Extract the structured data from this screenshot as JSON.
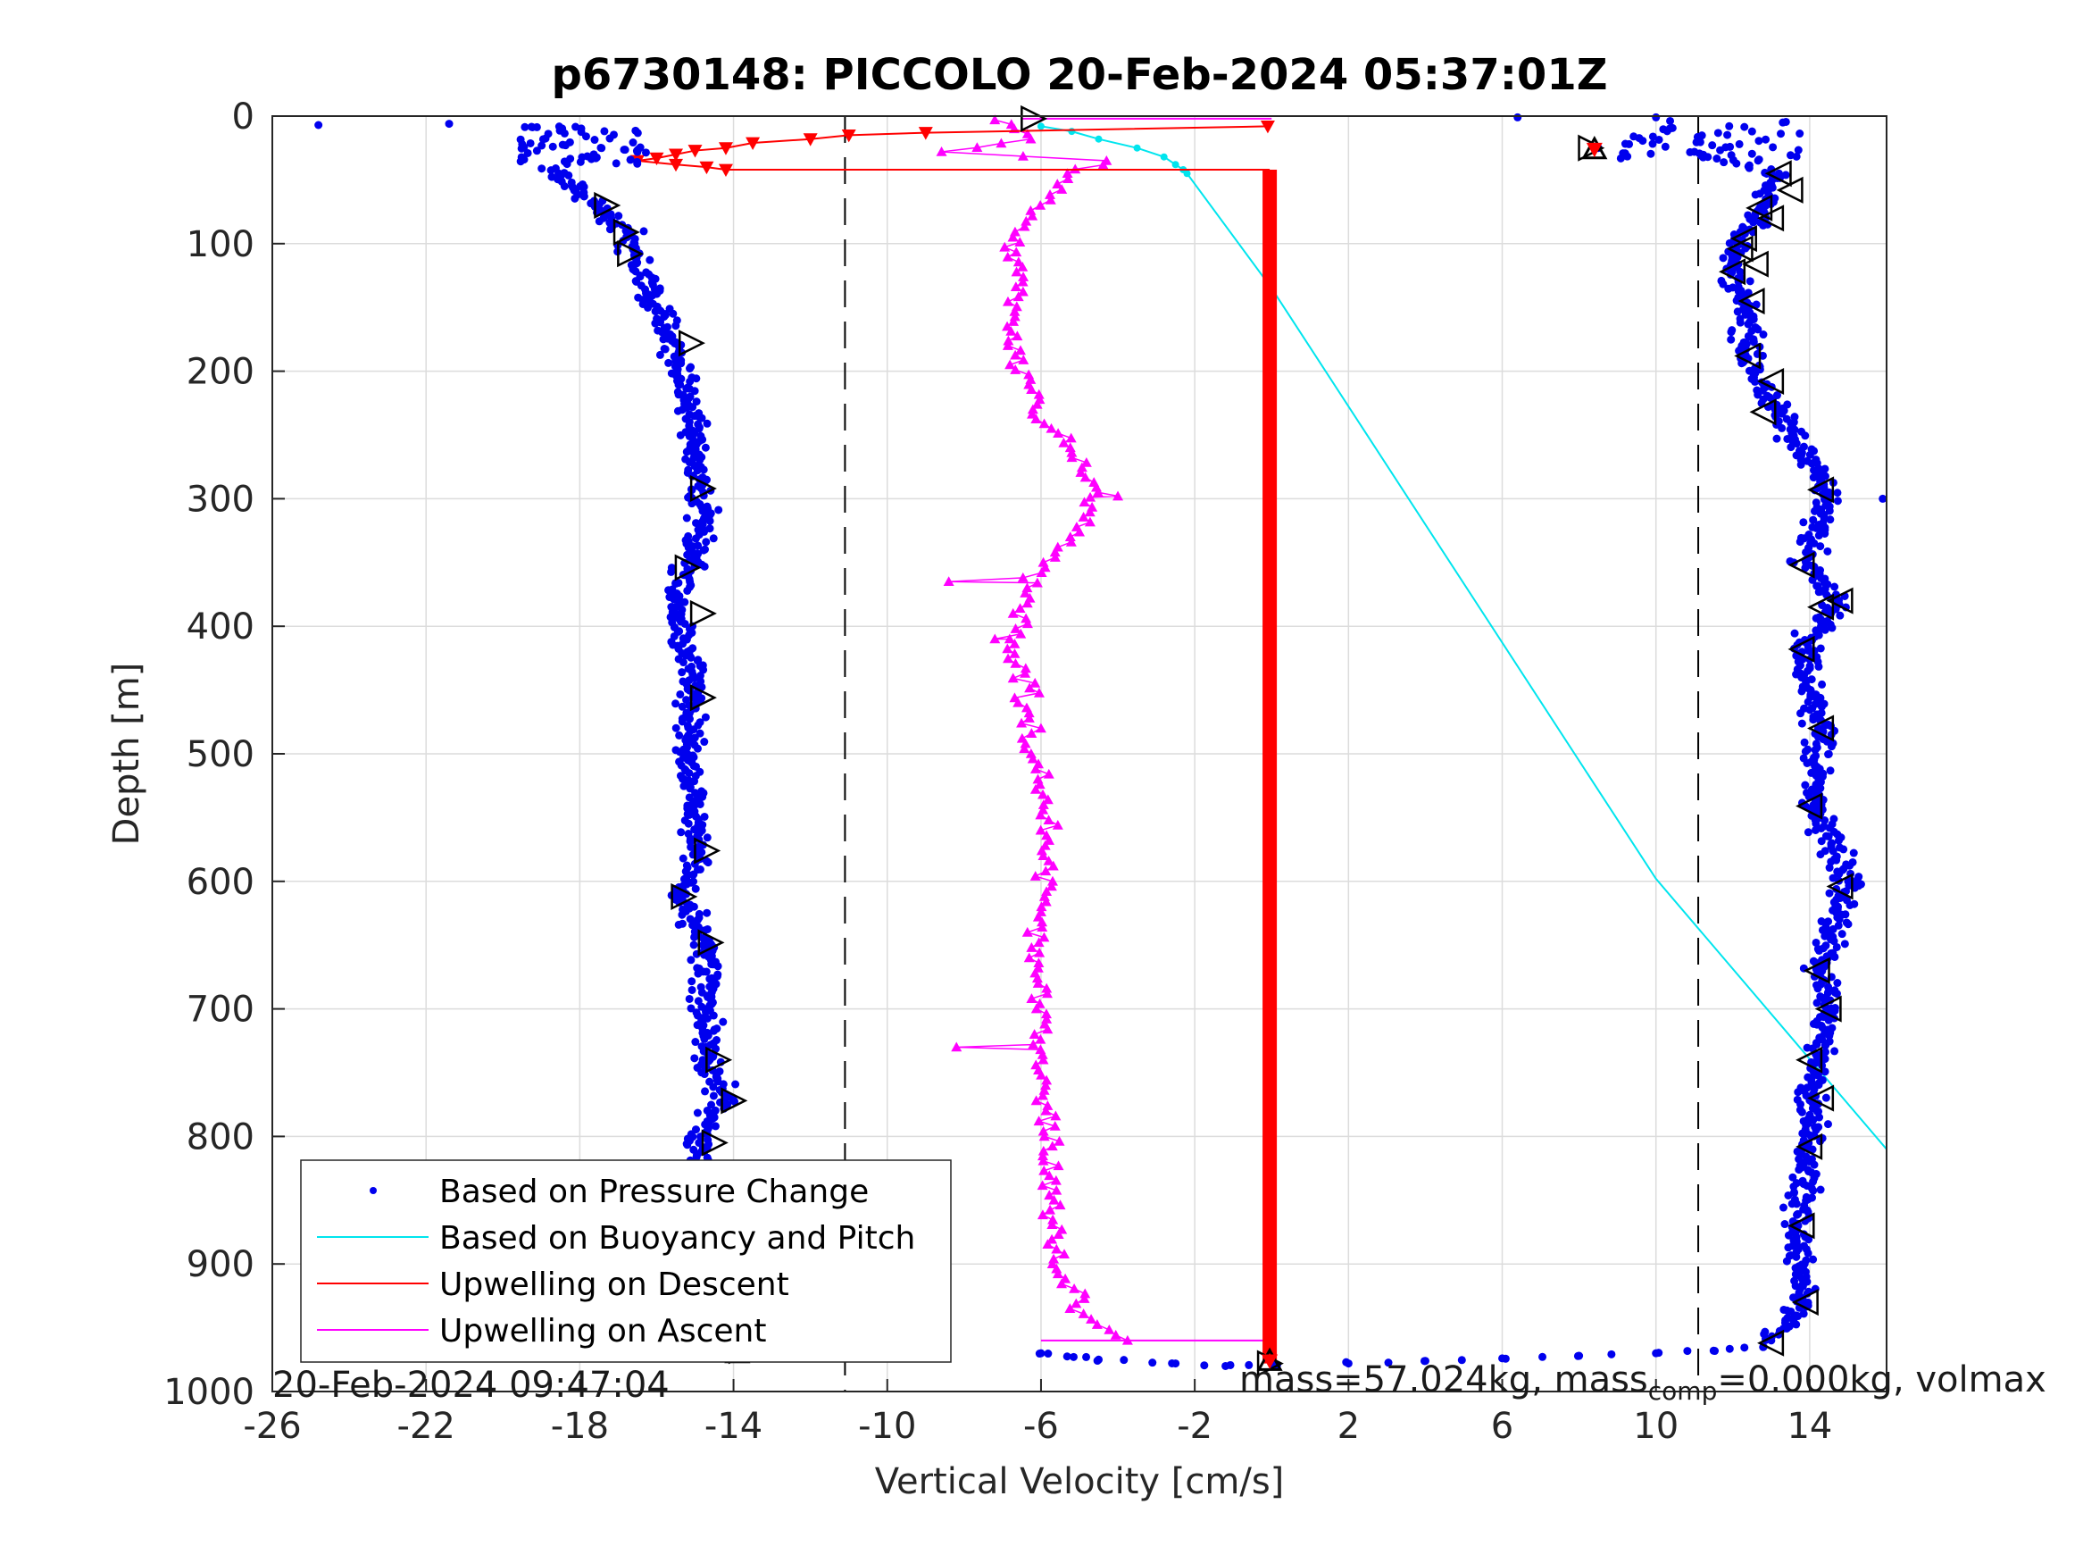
{
  "chart_data": {
    "type": "scatter",
    "title": "p6730148: PICCOLO 20-Feb-2024 05:37:01Z",
    "xlabel": "Vertical Velocity [cm/s]",
    "ylabel": "Depth [m]",
    "xlim": [
      -26,
      16
    ],
    "ylim": [
      0,
      1000
    ],
    "y_reversed": true,
    "xticks": [
      "-26",
      "-22",
      "-18",
      "-14",
      "-10",
      "-6",
      "-2",
      "2",
      "6",
      "10",
      "14"
    ],
    "yticks": [
      "0",
      "100",
      "200",
      "300",
      "400",
      "500",
      "600",
      "700",
      "800",
      "900",
      "1000"
    ],
    "grid": true,
    "legend_position": "bottom-left",
    "reference_lines_x": [
      -11.1,
      11.1
    ],
    "colors": {
      "pressure": "#0000ee",
      "buoyancy": "#00e5ee",
      "descent": "#ff0000",
      "ascent": "#ff00ff",
      "marker": "#000000"
    },
    "series": [
      {
        "name": "Based on Pressure Change",
        "style": "dots",
        "descent_profile": [
          [
            -24.8,
            7
          ],
          [
            -21.4,
            6
          ],
          [
            -19.5,
            22
          ],
          [
            -18.2,
            55
          ],
          [
            -17.6,
            70
          ],
          [
            -16.8,
            90
          ],
          [
            -16.6,
            105
          ],
          [
            -16.2,
            140
          ],
          [
            -15.6,
            175
          ],
          [
            -15.0,
            235
          ],
          [
            -14.9,
            290
          ],
          [
            -14.8,
            320
          ],
          [
            -15.2,
            355
          ],
          [
            -15.5,
            385
          ],
          [
            -15.2,
            420
          ],
          [
            -15.0,
            455
          ],
          [
            -15.2,
            500
          ],
          [
            -15.0,
            540
          ],
          [
            -14.9,
            580
          ],
          [
            -15.4,
            610
          ],
          [
            -14.8,
            650
          ],
          [
            -14.7,
            700
          ],
          [
            -14.8,
            740
          ],
          [
            -14.2,
            770
          ],
          [
            -14.9,
            805
          ],
          [
            -14.7,
            870
          ],
          [
            -14.3,
            930
          ],
          [
            -13.9,
            968
          ]
        ],
        "bottom_turn": [
          [
            -10.6,
            970
          ],
          [
            -6.0,
            970
          ],
          [
            -4.5,
            975
          ],
          [
            -2.5,
            978
          ],
          [
            -1.2,
            980
          ],
          [
            0.0,
            978
          ],
          [
            2.0,
            978
          ],
          [
            4.0,
            976
          ],
          [
            6.0,
            974
          ],
          [
            8.0,
            972
          ],
          [
            10.0,
            970
          ],
          [
            11.5,
            968
          ],
          [
            12.8,
            965
          ]
        ],
        "ascent_profile": [
          [
            13.0,
            960
          ],
          [
            13.8,
            930
          ],
          [
            13.7,
            870
          ],
          [
            14.0,
            810
          ],
          [
            14.1,
            760
          ],
          [
            14.5,
            700
          ],
          [
            14.3,
            670
          ],
          [
            15.0,
            600
          ],
          [
            14.1,
            540
          ],
          [
            14.3,
            480
          ],
          [
            13.8,
            420
          ],
          [
            14.7,
            380
          ],
          [
            13.9,
            350
          ],
          [
            14.5,
            295
          ],
          [
            13.1,
            230
          ],
          [
            12.4,
            190
          ],
          [
            12.3,
            150
          ],
          [
            12.0,
            120
          ],
          [
            12.2,
            100
          ],
          [
            12.8,
            70
          ],
          [
            13.2,
            45
          ],
          [
            11.0,
            28
          ],
          [
            9.3,
            22
          ],
          [
            8.5,
            25
          ],
          [
            12.5,
            12
          ],
          [
            13.3,
            5
          ],
          [
            10.0,
            1
          ],
          [
            6.4,
            1
          ]
        ]
      },
      {
        "name": "Based on Buoyancy and Pitch",
        "style": "line",
        "points": [
          [
            -6.0,
            8
          ],
          [
            -5.2,
            12
          ],
          [
            -4.5,
            18
          ],
          [
            -3.5,
            25
          ],
          [
            -2.8,
            32
          ],
          [
            -2.5,
            38
          ],
          [
            -2.3,
            42
          ],
          [
            -2.2,
            45
          ],
          [
            0.0,
            135
          ],
          [
            10.0,
            598
          ],
          [
            16.0,
            810
          ]
        ]
      },
      {
        "name": "Upwelling on Descent",
        "style": "triangle-down-line",
        "points": [
          [
            -0.1,
            8
          ],
          [
            -9.0,
            13
          ],
          [
            -11.0,
            15
          ],
          [
            -12.0,
            18
          ],
          [
            -13.5,
            21
          ],
          [
            -14.2,
            25
          ],
          [
            -15.0,
            27
          ],
          [
            -15.5,
            30
          ],
          [
            -16.0,
            33
          ],
          [
            -16.5,
            35
          ],
          [
            -15.5,
            38
          ],
          [
            -14.7,
            40
          ],
          [
            -14.2,
            42
          ]
        ],
        "vertical_segment": {
          "x": -0.05,
          "y_from": 42,
          "y_to": 978
        }
      },
      {
        "name": "Upwelling on Ascent",
        "style": "triangle-up-line",
        "profile": [
          [
            -3.9,
            960
          ],
          [
            -5.0,
            935
          ],
          [
            -5.6,
            900
          ],
          [
            -5.8,
            850
          ],
          [
            -5.8,
            800
          ],
          [
            -6.1,
            740
          ],
          [
            -5.9,
            700
          ],
          [
            -6.1,
            640
          ],
          [
            -5.8,
            600
          ],
          [
            -5.9,
            540
          ],
          [
            -6.2,
            500
          ],
          [
            -6.3,
            460
          ],
          [
            -6.6,
            410
          ],
          [
            -6.4,
            370
          ],
          [
            -5.2,
            330
          ],
          [
            -4.6,
            295
          ],
          [
            -5.2,
            260
          ],
          [
            -6.2,
            230
          ],
          [
            -6.5,
            195
          ],
          [
            -7.0,
            165
          ],
          [
            -6.6,
            130
          ],
          [
            -6.8,
            95
          ],
          [
            -6.0,
            70
          ],
          [
            -5.2,
            45
          ],
          [
            -4.4,
            35
          ],
          [
            -8.6,
            28
          ],
          [
            -6.2,
            18
          ],
          [
            -6.8,
            10
          ],
          [
            -7.2,
            3
          ]
        ],
        "outliers": [
          [
            -8.4,
            365
          ],
          [
            -7.2,
            410
          ],
          [
            -8.2,
            730
          ],
          [
            -4.0,
            298
          ]
        ],
        "top_connector": {
          "x_from": -6.5,
          "x_to": 0.0,
          "y": 2
        },
        "bottom_connector": {
          "x_from": -6.0,
          "x_to": 0.0,
          "y": 960
        }
      }
    ],
    "markers_right": [
      [
        -6.2,
        2
      ],
      [
        -17.3,
        70
      ],
      [
        -16.8,
        91
      ],
      [
        -16.7,
        108
      ],
      [
        -15.1,
        178
      ],
      [
        -14.8,
        292
      ],
      [
        -15.2,
        354
      ],
      [
        -14.8,
        390
      ],
      [
        -14.8,
        456
      ],
      [
        -14.7,
        576
      ],
      [
        -15.3,
        612
      ],
      [
        -14.6,
        648
      ],
      [
        -14.4,
        740
      ],
      [
        -14.0,
        772
      ],
      [
        -14.5,
        805
      ],
      [
        -14.5,
        870
      ],
      [
        -13.8,
        968
      ],
      [
        -0.05,
        978
      ],
      [
        8.3,
        25
      ]
    ],
    "markers_left": [
      [
        13.2,
        45
      ],
      [
        13.5,
        58
      ],
      [
        12.7,
        72
      ],
      [
        13.0,
        80
      ],
      [
        12.3,
        96
      ],
      [
        12.2,
        104
      ],
      [
        12.6,
        116
      ],
      [
        12.0,
        122
      ],
      [
        12.5,
        145
      ],
      [
        12.4,
        188
      ],
      [
        13.0,
        208
      ],
      [
        12.8,
        232
      ],
      [
        14.3,
        293
      ],
      [
        13.8,
        352
      ],
      [
        14.3,
        385
      ],
      [
        14.8,
        380
      ],
      [
        13.8,
        418
      ],
      [
        14.3,
        480
      ],
      [
        14.0,
        541
      ],
      [
        14.8,
        604
      ],
      [
        14.2,
        670
      ],
      [
        14.5,
        700
      ],
      [
        14.0,
        740
      ],
      [
        14.3,
        770
      ],
      [
        14.0,
        808
      ],
      [
        13.8,
        870
      ],
      [
        13.9,
        930
      ],
      [
        13.0,
        962
      ]
    ],
    "endpoint_markers_red": [
      [
        -13.9,
        970
      ],
      [
        -0.05,
        976
      ],
      [
        8.4,
        26
      ]
    ]
  },
  "footer": {
    "timestamp": "20-Feb-2024 09:47:04",
    "mass_text": "mass=57.024kg, mass",
    "mass_sub": "comp",
    "mass_rest": "=0.000kg, volmax"
  }
}
